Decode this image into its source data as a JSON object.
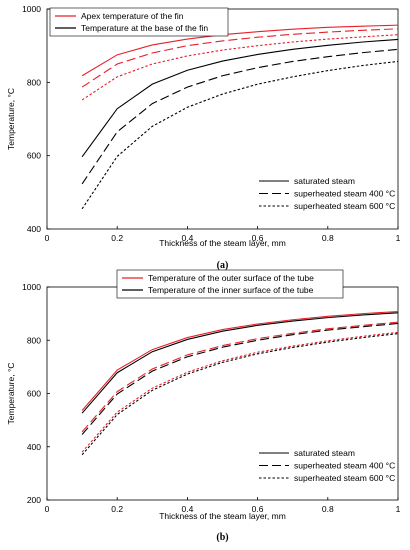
{
  "chart_data": [
    {
      "type": "line",
      "panel_label": "(a)",
      "xlabel": "Thickness of the steam layer, mm",
      "ylabel": "Temperature, °C",
      "xlim": [
        0,
        1
      ],
      "ylim": [
        400,
        1000
      ],
      "x_ticks": [
        0,
        0.2,
        0.4,
        0.6,
        0.8,
        1
      ],
      "x_tick_labels": [
        "0",
        "0.2",
        "0.4",
        "0.6",
        "0.8",
        "1"
      ],
      "y_ticks": [
        400,
        600,
        800,
        1000
      ],
      "y_tick_labels": [
        "400",
        "600",
        "800",
        "1000"
      ],
      "grid": false,
      "legend_color": {
        "position": "top-left",
        "items": [
          {
            "label": "Apex temperature of the fin",
            "color": "#e8202a"
          },
          {
            "label": "Temperature at the base of the fin",
            "color": "#000000"
          }
        ]
      },
      "legend_style": {
        "position": "bottom-right",
        "items": [
          {
            "label": "saturated steam",
            "dash": "solid"
          },
          {
            "label": "superheated steam 400 °C",
            "dash": "long"
          },
          {
            "label": "superheated steam 600 °C",
            "dash": "short"
          }
        ]
      },
      "x": [
        0.1,
        0.2,
        0.3,
        0.4,
        0.5,
        0.6,
        0.7,
        0.8,
        0.9,
        1.0
      ],
      "series": [
        {
          "color": "#e8202a",
          "dash": "solid",
          "values": [
            818,
            875,
            902,
            918,
            930,
            938,
            945,
            950,
            953,
            956
          ]
        },
        {
          "color": "#e8202a",
          "dash": "long",
          "values": [
            787,
            850,
            880,
            900,
            913,
            923,
            931,
            937,
            942,
            946
          ]
        },
        {
          "color": "#e8202a",
          "dash": "short",
          "values": [
            752,
            815,
            850,
            872,
            888,
            900,
            910,
            918,
            924,
            930
          ]
        },
        {
          "color": "#000000",
          "dash": "solid",
          "values": [
            597,
            728,
            795,
            833,
            858,
            876,
            890,
            901,
            910,
            917
          ]
        },
        {
          "color": "#000000",
          "dash": "long",
          "values": [
            523,
            665,
            742,
            787,
            818,
            840,
            857,
            870,
            881,
            890
          ]
        },
        {
          "color": "#000000",
          "dash": "short",
          "values": [
            455,
            598,
            680,
            732,
            768,
            795,
            815,
            832,
            846,
            857
          ]
        }
      ]
    },
    {
      "type": "line",
      "panel_label": "(b)",
      "xlabel": "Thickness of the steam layer, mm",
      "ylabel": "Temperature, °C",
      "xlim": [
        0,
        1
      ],
      "ylim": [
        200,
        1000
      ],
      "x_ticks": [
        0,
        0.2,
        0.4,
        0.6,
        0.8,
        1
      ],
      "x_tick_labels": [
        "0",
        "0.2",
        "0.4",
        "0.6",
        "0.8",
        "1"
      ],
      "y_ticks": [
        200,
        400,
        600,
        800,
        1000
      ],
      "y_tick_labels": [
        "200",
        "400",
        "600",
        "800",
        "1000"
      ],
      "grid": false,
      "legend_color": {
        "position": "top-center",
        "items": [
          {
            "label": "Temperature of the outer surface of the tube",
            "color": "#e8202a"
          },
          {
            "label": "Temperature of the inner surface of the tube",
            "color": "#000000"
          }
        ]
      },
      "legend_style": {
        "position": "bottom-right",
        "items": [
          {
            "label": "saturated steam",
            "dash": "solid"
          },
          {
            "label": "superheated steam 400 °C",
            "dash": "long"
          },
          {
            "label": "superheated steam 600 °C",
            "dash": "short"
          }
        ]
      },
      "x": [
        0.1,
        0.2,
        0.3,
        0.4,
        0.5,
        0.6,
        0.7,
        0.8,
        0.9,
        1.0
      ],
      "series": [
        {
          "color": "#e8202a",
          "dash": "solid",
          "values": [
            536,
            688,
            765,
            810,
            840,
            861,
            877,
            890,
            900,
            908
          ]
        },
        {
          "color": "#000000",
          "dash": "solid",
          "values": [
            526,
            678,
            757,
            803,
            834,
            856,
            872,
            885,
            895,
            903
          ]
        },
        {
          "color": "#e8202a",
          "dash": "long",
          "values": [
            456,
            607,
            692,
            745,
            780,
            806,
            826,
            843,
            856,
            868
          ]
        },
        {
          "color": "#000000",
          "dash": "long",
          "values": [
            446,
            598,
            684,
            738,
            774,
            800,
            821,
            838,
            851,
            863
          ]
        },
        {
          "color": "#e8202a",
          "dash": "short",
          "values": [
            380,
            530,
            620,
            680,
            723,
            755,
            778,
            798,
            815,
            830
          ]
        },
        {
          "color": "#000000",
          "dash": "short",
          "values": [
            370,
            521,
            612,
            673,
            717,
            749,
            773,
            793,
            810,
            825
          ]
        }
      ]
    }
  ]
}
